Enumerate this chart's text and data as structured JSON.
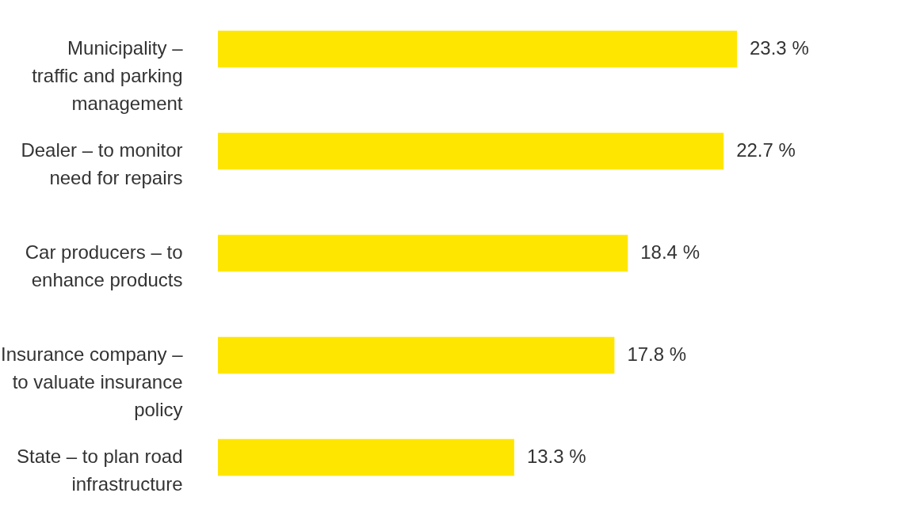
{
  "chart_data": {
    "type": "bar",
    "orientation": "horizontal",
    "categories": [
      "Municipality – traffic and parking management",
      "Dealer – to monitor need for repairs",
      "Car producers – to enhance products",
      "Insurance company – to valuate insurance policy",
      "State – to plan road infrastructure"
    ],
    "values": [
      23.3,
      22.7,
      18.4,
      17.8,
      13.3
    ],
    "value_labels": [
      "23.3 %",
      "22.7 %",
      "18.4 %",
      "17.8 %",
      "13.3 %"
    ],
    "color": "#ffe600",
    "tick_labels": "y"
  }
}
